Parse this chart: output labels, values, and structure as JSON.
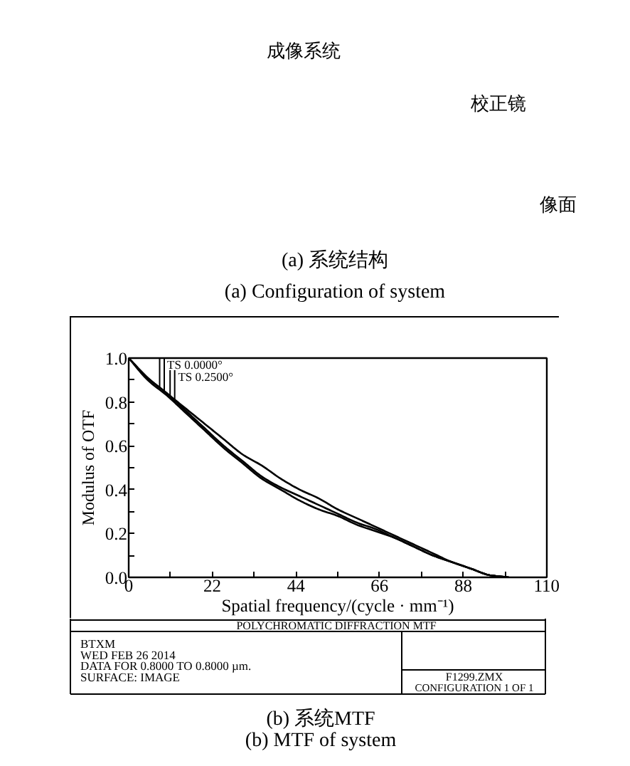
{
  "chart_data": [
    {
      "type": "other",
      "annotations": [
        "成像系统",
        "校正镜",
        "像面",
        "(a) 系统结构",
        "(a) Configuration of system"
      ]
    },
    {
      "type": "line",
      "title": "POLYCHROMATIC DIFFRACTION MTF",
      "xlabel": "Spatial frequency/(cycle · mm⁻¹)",
      "ylabel": "Modulus of OTF",
      "x": [
        0,
        5,
        10,
        15,
        20,
        25,
        30,
        35,
        40,
        45,
        50,
        55,
        60,
        65,
        70,
        75,
        80,
        85,
        90,
        95,
        100
      ],
      "series": [
        {
          "name": "TS 0.0000°",
          "color": "#000000",
          "values": [
            1.0,
            0.91,
            0.84,
            0.77,
            0.7,
            0.63,
            0.56,
            0.51,
            0.45,
            0.4,
            0.36,
            0.31,
            0.27,
            0.23,
            0.19,
            0.15,
            0.11,
            0.07,
            0.04,
            0.01,
            0
          ]
        },
        {
          "name": "TS 0.2500°",
          "color": "#000000",
          "values": [
            1.0,
            0.91,
            0.84,
            0.76,
            0.68,
            0.6,
            0.53,
            0.46,
            0.41,
            0.37,
            0.33,
            0.29,
            0.25,
            0.22,
            0.18,
            0.14,
            0.1,
            0.07,
            0.04,
            0.01,
            0
          ]
        },
        {
          "color": "#000000",
          "values": [
            1.0,
            0.9,
            0.83,
            0.75,
            0.67,
            0.59,
            0.52,
            0.45,
            0.4,
            0.35,
            0.31,
            0.28,
            0.24,
            0.21,
            0.18,
            0.14,
            0.1,
            0.07,
            0.04,
            0.01,
            0
          ]
        }
      ],
      "xlim": [
        0,
        110
      ],
      "ylim": [
        0,
        1
      ],
      "xticks": [
        0,
        {
          "value": 11,
          "label": null
        },
        22,
        {
          "value": 33,
          "label": null
        },
        44,
        {
          "value": 55,
          "label": null
        },
        66,
        {
          "value": 77,
          "label": null
        },
        88,
        {
          "value": 99,
          "label": null
        },
        110
      ],
      "yticks": [
        {
          "value": 0,
          "label": "0.0"
        },
        {
          "value": 0.1,
          "label": null
        },
        0.2,
        {
          "value": 0.3,
          "label": null
        },
        0.4,
        {
          "value": 0.5,
          "label": null
        },
        0.6,
        {
          "value": 0.7,
          "label": null
        },
        0.8,
        {
          "value": 0.9,
          "label": null
        },
        {
          "value": 1,
          "label": "1.0"
        }
      ],
      "legend": "top left",
      "annotations": [
        "BTXM",
        "WED FEB 26 2014",
        "DATA FOR 0.8000 TO 0.8000 µm.",
        "SURFACE: IMAGE",
        "F1299.ZMX",
        "CONFIGURATION 1 OF 1",
        "(b) 系统MTF",
        "(b) MTF of system"
      ]
    }
  ]
}
